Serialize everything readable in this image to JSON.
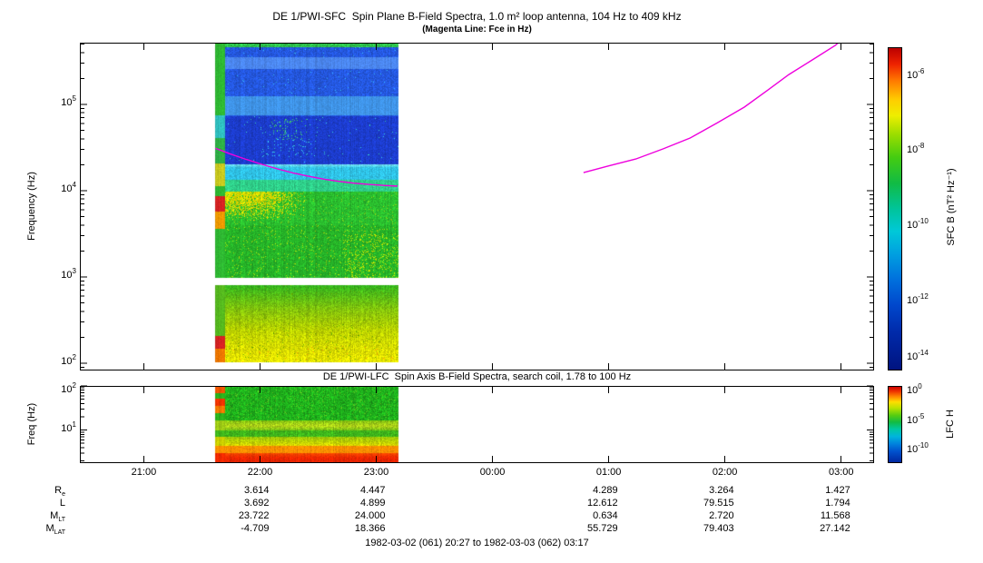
{
  "footer": "1982-03-02 (061) 20:27 to 1982-03-03 (062) 03:17",
  "time_axis": {
    "start_label": "20:27",
    "end_label": "03:17",
    "total_minutes": 410,
    "ticks": [
      {
        "label": "21:00",
        "minute": 33
      },
      {
        "label": "22:00",
        "minute": 93
      },
      {
        "label": "23:00",
        "minute": 153
      },
      {
        "label": "00:00",
        "minute": 213
      },
      {
        "label": "01:00",
        "minute": 273
      },
      {
        "label": "02:00",
        "minute": 333
      },
      {
        "label": "03:00",
        "minute": 393
      }
    ]
  },
  "ephemeris": {
    "columns": [
      {
        "time": "22:00",
        "minute": 93
      },
      {
        "time": "23:00",
        "minute": 153
      },
      {
        "time": "01:00",
        "minute": 273
      },
      {
        "time": "02:00",
        "minute": 333
      },
      {
        "time": "03:00",
        "minute": 393
      }
    ],
    "rows": [
      {
        "name": "Re",
        "main": "R",
        "sub": "e",
        "values": [
          "3.614",
          "4.447",
          "4.289",
          "3.264",
          "1.427"
        ]
      },
      {
        "name": "L",
        "main": "L",
        "sub": "",
        "values": [
          "3.692",
          "4.899",
          "12.612",
          "79.515",
          "1.794"
        ]
      },
      {
        "name": "MLT",
        "main": "M",
        "sub": "LT",
        "values": [
          "23.722",
          "24.000",
          "0.634",
          "2.720",
          "11.568"
        ]
      },
      {
        "name": "MLAT",
        "main": "M",
        "sub": "LAT",
        "values": [
          "-4.709",
          "18.366",
          "55.729",
          "79.403",
          "27.142"
        ]
      }
    ]
  },
  "chart_data": [
    {
      "type": "heatmap",
      "title": "DE 1/PWI-SFC  Spin Plane B-Field Spectra, 1.0 m² loop antenna, 104 Hz to 409 kHz",
      "subtitle": "(Magenta Line: Fce in Hz)",
      "ylabel": "Frequency (Hz)",
      "yscale": "log",
      "ylim_hz": [
        104,
        409000
      ],
      "yticks": [
        {
          "base": "10",
          "exp": "5",
          "value_hz": 100000
        },
        {
          "base": "10",
          "exp": "4",
          "value_hz": 10000
        },
        {
          "base": "10",
          "exp": "3",
          "value_hz": 1000
        },
        {
          "base": "10",
          "exp": "2",
          "value_hz": 100
        }
      ],
      "coverage_minutes": [
        70,
        164
      ],
      "colorbar": {
        "label": "SFC B (nT² Hz⁻¹)",
        "ticks": [
          {
            "base": "10",
            "exp": "-6",
            "frac": 0.093
          },
          {
            "base": "10",
            "exp": "-8",
            "frac": 0.323
          },
          {
            "base": "10",
            "exp": "-10",
            "frac": 0.556
          },
          {
            "base": "10",
            "exp": "-12",
            "frac": 0.789
          },
          {
            "base": "10",
            "exp": "-14",
            "frac": 0.963
          }
        ],
        "gradient": [
          [
            0,
            "#bb0000"
          ],
          [
            0.05,
            "#ee2200"
          ],
          [
            0.1,
            "#ff7700"
          ],
          [
            0.16,
            "#ffcc00"
          ],
          [
            0.21,
            "#eeee00"
          ],
          [
            0.27,
            "#99dd00"
          ],
          [
            0.34,
            "#44cc11"
          ],
          [
            0.42,
            "#11bb44"
          ],
          [
            0.5,
            "#00c49a"
          ],
          [
            0.57,
            "#00c8d8"
          ],
          [
            0.64,
            "#00a0e0"
          ],
          [
            0.72,
            "#0070dd"
          ],
          [
            0.8,
            "#0047cc"
          ],
          [
            0.88,
            "#002bab"
          ],
          [
            1,
            "#001380"
          ]
        ]
      },
      "fce_line": {
        "label": "Fce",
        "color": "#ee00dd",
        "segments_minute_hz": [
          [
            [
              70,
              31000
            ],
            [
              78,
              26500
            ],
            [
              86,
              23000
            ],
            [
              94,
              20200
            ],
            [
              102,
              17900
            ],
            [
              110,
              16100
            ],
            [
              118,
              14700
            ],
            [
              126,
              13600
            ],
            [
              134,
              12800
            ],
            [
              142,
              12200
            ],
            [
              150,
              11800
            ],
            [
              157,
              11500
            ],
            [
              164,
              11300
            ]
          ],
          [
            [
              260,
              16200
            ],
            [
              273,
              19400
            ],
            [
              287,
              23300
            ],
            [
              301,
              30500
            ],
            [
              315,
              40800
            ],
            [
              329,
              61000
            ],
            [
              343,
              93000
            ],
            [
              355,
              146000
            ],
            [
              366,
              222000
            ],
            [
              378,
              327000
            ],
            [
              390,
              483000
            ],
            [
              396,
              640000
            ]
          ]
        ]
      },
      "spectrogram_model": {
        "seed": 7,
        "exp_min": 2.0,
        "strip_bands": [
          [
            5.716,
            4.88,
            "#2eb832"
          ],
          [
            4.88,
            4.62,
            "#2fc0c0"
          ],
          [
            4.62,
            4.32,
            "#2eb046"
          ],
          [
            4.32,
            4.06,
            "#c8c81e"
          ],
          [
            4.06,
            3.94,
            "#2eb832"
          ],
          [
            3.94,
            3.76,
            "#d42222"
          ],
          [
            3.76,
            3.56,
            "#ee9900"
          ],
          [
            3.56,
            2.99,
            "#2eb832"
          ],
          [
            2.915,
            2.32,
            "#55b81e"
          ],
          [
            2.32,
            2.17,
            "#d42222"
          ],
          [
            2.17,
            2.02,
            "#ee7700"
          ]
        ],
        "regions": [
          {
            "hi": 5.716,
            "lo": 5.67,
            "color": "#2ec24a",
            "noise": 0.2
          },
          {
            "hi": 5.67,
            "lo": 4.87,
            "color": "#2457de",
            "noise": 0.16,
            "streaks": [
              [
                5.55,
                5.42,
                "#4b86ee"
              ],
              [
                5.1,
                4.88,
                "#3f93e6"
              ]
            ],
            "specks": [
              {
                "p": 0.01,
                "color": "#35b5ee"
              }
            ]
          },
          {
            "hi": 4.87,
            "lo": 4.31,
            "color": "#1c3ccc",
            "noise": 0.14,
            "specks": [
              {
                "p": 0.1,
                "color": "#3fd46a",
                "u0": 0.3,
                "u1": 0.5,
                "e0": 4.6,
                "e1": 4.85
              },
              {
                "p": 0.05,
                "color": "#35c8e0",
                "u0": 0.25,
                "u1": 0.55,
                "e0": 4.4,
                "e1": 4.6
              },
              {
                "p": 0.006,
                "color": "#38cfd4"
              }
            ]
          },
          {
            "hi": 4.31,
            "lo": 4.13,
            "stops": [
              [
                4.31,
                "#7ae4f2"
              ],
              [
                4.27,
                "#2fc2e6"
              ],
              [
                4.13,
                "#2fc2e6"
              ]
            ],
            "noise": 0.12
          },
          {
            "hi": 4.13,
            "lo": 3.99,
            "color": "#2fcf8a",
            "noise": 0.12
          },
          {
            "hi": 3.99,
            "lo": 3.6,
            "color": "#2abd2e",
            "noise": 0.15,
            "patch": {
              "color": "#d8d800",
              "u1": 0.5,
              "k1": 4,
              "e0": 3.66,
              "k2": 4,
              "pmax": 0.9
            },
            "specks": [
              {
                "p": 0.03,
                "color": "#8ed414"
              }
            ]
          },
          {
            "hi": 3.6,
            "lo": 2.99,
            "color": "#26b328",
            "noise": 0.15,
            "specks": [
              {
                "p": 0.1,
                "color": "#c8e400",
                "u0": 0.7,
                "u1": 1.0,
                "e0": 2.99,
                "e1": 3.5
              },
              {
                "p": 0.045,
                "color": "#a8dc0a"
              }
            ]
          },
          {
            "hi": 2.915,
            "lo": 2.02,
            "stops": [
              [
                2.915,
                "#32b41e"
              ],
              [
                2.62,
                "#86c40c"
              ],
              [
                2.38,
                "#bcd200"
              ],
              [
                2.12,
                "#dede00"
              ],
              [
                2.02,
                "#e8e800"
              ]
            ],
            "noise": 0.16,
            "specks": [
              {
                "p": 0.012,
                "color": "#ff9900",
                "e0": 2.02,
                "e1": 2.2
              },
              {
                "p": 0.02,
                "color": "#66aa00"
              }
            ]
          }
        ]
      }
    },
    {
      "type": "heatmap",
      "title": "DE 1/PWI-LFC  Spin Axis B-Field Spectra, search coil, 1.78 to 100 Hz",
      "ylabel": "Freq (Hz)",
      "yscale": "log",
      "ylim_hz": [
        1.78,
        100
      ],
      "yticks": [
        {
          "base": "10",
          "exp": "2",
          "value_hz": 100
        },
        {
          "base": "10",
          "exp": "1",
          "value_hz": 10
        }
      ],
      "coverage_minutes": [
        70,
        164
      ],
      "colorbar": {
        "label": "LFC H",
        "ticks": [
          {
            "base": "10",
            "exp": "0",
            "frac": 0.08
          },
          {
            "base": "10",
            "exp": "-5",
            "frac": 0.47
          },
          {
            "base": "10",
            "exp": "-10",
            "frac": 0.85
          }
        ],
        "gradient": [
          [
            0,
            "#cc0000"
          ],
          [
            0.06,
            "#ee3300"
          ],
          [
            0.13,
            "#ff8800"
          ],
          [
            0.2,
            "#ffdd00"
          ],
          [
            0.28,
            "#bbe200"
          ],
          [
            0.38,
            "#55cc11"
          ],
          [
            0.47,
            "#11bb44"
          ],
          [
            0.56,
            "#00c8a0"
          ],
          [
            0.66,
            "#00b4dd"
          ],
          [
            0.76,
            "#0080dd"
          ],
          [
            0.86,
            "#0050cc"
          ],
          [
            1,
            "#0028a0"
          ]
        ]
      },
      "spectrogram_model": {
        "seed": 11,
        "exp_min": 0.27,
        "strip_bands": [
          [
            1.98,
            1.84,
            "#ee5500"
          ],
          [
            1.84,
            1.73,
            "#2ab01c"
          ],
          [
            1.73,
            1.55,
            "#ee3300"
          ],
          [
            1.55,
            1.4,
            "#f07800"
          ],
          [
            1.4,
            1.22,
            "#2ab01c"
          ],
          [
            1.22,
            1.01,
            "#9cc814"
          ],
          [
            1.01,
            0.85,
            "#3eb51c"
          ],
          [
            0.85,
            0.66,
            "#c8cc00"
          ],
          [
            0.66,
            0.49,
            "#ff9000"
          ],
          [
            0.49,
            0.27,
            "#ee2800"
          ]
        ],
        "regions": [
          {
            "hi": 1.98,
            "lo": 1.22,
            "color": "#1fb01c",
            "noise": 0.22,
            "specks": [
              {
                "p": 0.05,
                "color": "#5ec41e"
              }
            ]
          },
          {
            "hi": 1.22,
            "lo": 1.01,
            "stops": [
              [
                1.22,
                "#86c410"
              ],
              [
                1.1,
                "#b4d41a"
              ],
              [
                1.01,
                "#7cc214"
              ]
            ],
            "noise": 0.18
          },
          {
            "hi": 1.01,
            "lo": 0.85,
            "color": "#3eb51c",
            "noise": 0.18
          },
          {
            "hi": 0.85,
            "lo": 0.66,
            "stops": [
              [
                0.85,
                "#9cc808"
              ],
              [
                0.66,
                "#dcdc00"
              ]
            ],
            "noise": 0.15
          },
          {
            "hi": 0.66,
            "lo": 0.49,
            "color": "#ff9000",
            "noise": 0.12
          },
          {
            "hi": 0.49,
            "lo": 0.27,
            "stops": [
              [
                0.49,
                "#f94800"
              ],
              [
                0.38,
                "#ee2600"
              ],
              [
                0.27,
                "#e02200"
              ]
            ],
            "noise": 0.1
          }
        ]
      }
    }
  ]
}
